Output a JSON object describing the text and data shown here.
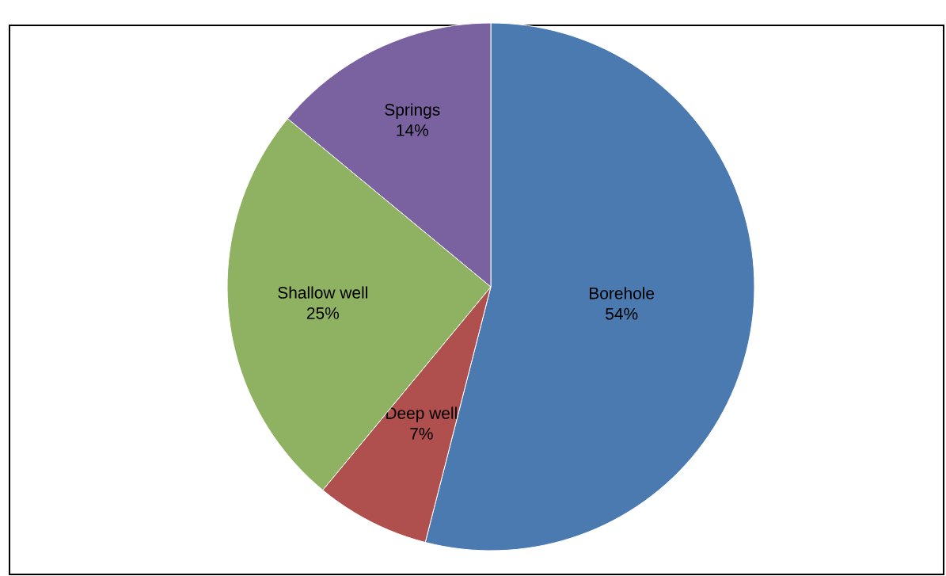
{
  "chart_data": {
    "type": "pie",
    "categories": [
      "Borehole",
      "Deep well",
      "Shallow well",
      "Springs"
    ],
    "values": [
      54,
      7,
      25,
      14
    ],
    "value_labels": [
      "54%",
      "7%",
      "25%",
      "14%"
    ],
    "colors": [
      "#4a7ab0",
      "#b0504e",
      "#8fb262",
      "#7a62a0"
    ]
  }
}
